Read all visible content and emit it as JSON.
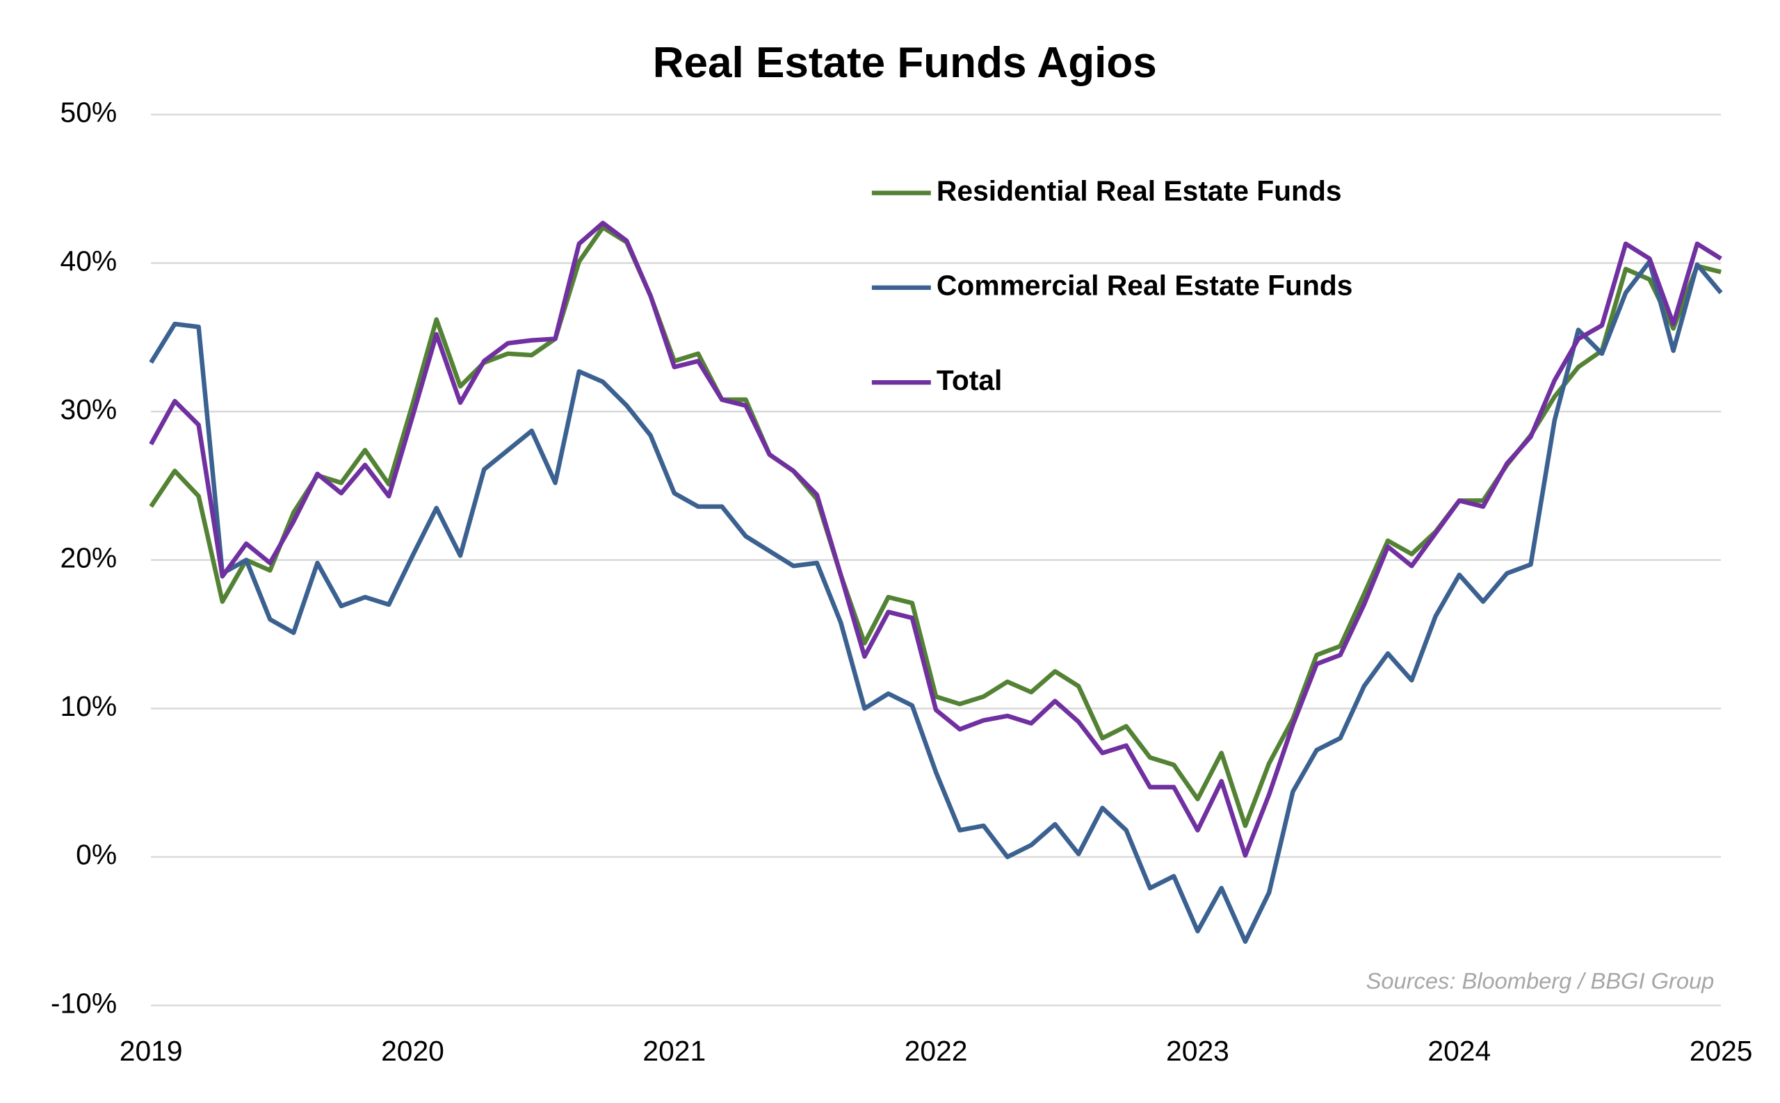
{
  "chart_data": {
    "type": "line",
    "title": "Real Estate Funds Agios",
    "x": [
      2019,
      2019.091,
      2019.182,
      2019.273,
      2019.364,
      2019.455,
      2019.545,
      2019.636,
      2019.727,
      2019.818,
      2019.909,
      2020,
      2020.091,
      2020.182,
      2020.273,
      2020.364,
      2020.455,
      2020.545,
      2020.636,
      2020.727,
      2020.818,
      2020.909,
      2021,
      2021.091,
      2021.182,
      2021.273,
      2021.364,
      2021.455,
      2021.545,
      2021.636,
      2021.727,
      2021.818,
      2021.909,
      2022,
      2022.091,
      2022.182,
      2022.273,
      2022.364,
      2022.455,
      2022.545,
      2022.636,
      2022.727,
      2022.818,
      2022.909,
      2023,
      2023.091,
      2023.182,
      2023.273,
      2023.364,
      2023.455,
      2023.545,
      2023.636,
      2023.727,
      2023.818,
      2023.909,
      2024,
      2024.091,
      2024.182,
      2024.273,
      2024.364,
      2024.455,
      2024.545,
      2024.636,
      2024.727,
      2024.818,
      2024.909,
      2025
    ],
    "series": [
      {
        "name": "Residential Real Estate Funds",
        "color": "#548235",
        "values": [
          23.6,
          26.0,
          24.3,
          17.2,
          20.0,
          19.3,
          23.2,
          25.7,
          25.2,
          27.4,
          25.1,
          30.5,
          36.2,
          31.7,
          33.3,
          33.9,
          33.8,
          34.9,
          40.1,
          42.4,
          41.4,
          37.8,
          33.4,
          33.9,
          30.8,
          30.8,
          27.1,
          26.0,
          24.1,
          19.0,
          14.4,
          17.5,
          17.1,
          10.8,
          10.3,
          10.8,
          11.8,
          11.1,
          12.5,
          11.5,
          8.0,
          8.8,
          6.7,
          6.2,
          3.9,
          7.0,
          2.1,
          6.3,
          9.3,
          13.6,
          14.2,
          17.7,
          21.3,
          20.4,
          21.9,
          24.0,
          24.0,
          26.4,
          28.4,
          31.0,
          33.0,
          34.1,
          39.6,
          38.9,
          35.6,
          39.8,
          39.4
        ]
      },
      {
        "name": "Commercial Real Estate Funds",
        "color": "#3b6190",
        "values": [
          33.3,
          35.9,
          35.7,
          19.1,
          20.0,
          16.0,
          15.1,
          19.8,
          16.9,
          17.5,
          17.0,
          20.3,
          23.5,
          20.3,
          26.1,
          27.4,
          28.7,
          25.2,
          32.7,
          32.0,
          30.4,
          28.4,
          24.5,
          23.6,
          23.6,
          21.6,
          20.6,
          19.6,
          19.8,
          15.8,
          10.0,
          11.0,
          10.2,
          5.7,
          1.8,
          2.1,
          0.0,
          0.8,
          2.2,
          0.2,
          3.3,
          1.8,
          -2.1,
          -1.3,
          -5.0,
          -2.1,
          -5.7,
          -2.4,
          4.4,
          7.2,
          8.0,
          11.5,
          13.7,
          11.9,
          16.2,
          19.0,
          17.2,
          19.1,
          19.7,
          29.4,
          35.5,
          33.9,
          38.0,
          40.1,
          34.1,
          39.9,
          38.0
        ]
      },
      {
        "name": "Total",
        "color": "#7030a0",
        "values": [
          27.8,
          30.7,
          29.1,
          18.9,
          21.1,
          19.8,
          22.6,
          25.8,
          24.5,
          26.4,
          24.3,
          29.7,
          35.2,
          30.6,
          33.4,
          34.6,
          34.8,
          34.9,
          41.3,
          42.7,
          41.5,
          37.8,
          33.0,
          33.4,
          30.8,
          30.4,
          27.1,
          26.0,
          24.4,
          19.0,
          13.5,
          16.5,
          16.1,
          9.9,
          8.6,
          9.2,
          9.5,
          9.0,
          10.5,
          9.1,
          7.0,
          7.5,
          4.7,
          4.7,
          1.8,
          5.1,
          0.1,
          4.2,
          8.9,
          13.0,
          13.6,
          17.0,
          20.9,
          19.6,
          21.8,
          24.0,
          23.6,
          26.5,
          28.3,
          32.1,
          34.9,
          35.8,
          41.3,
          40.3,
          35.9,
          41.3,
          40.3
        ]
      }
    ],
    "xlim": [
      2019,
      2025
    ],
    "xticks": [
      2019,
      2020,
      2021,
      2022,
      2023,
      2024,
      2025
    ],
    "ylim": [
      -10,
      50
    ],
    "yticks": [
      {
        "value": -10,
        "label": "-10%"
      },
      {
        "value": 0,
        "label": "0%"
      },
      {
        "value": 10,
        "label": "10%"
      },
      {
        "value": 20,
        "label": "20%"
      },
      {
        "value": 30,
        "label": "30%"
      },
      {
        "value": 40,
        "label": "40%"
      },
      {
        "value": 50,
        "label": "50%"
      }
    ],
    "grid": true,
    "annotation": "Sources: Bloomberg / BBGI Group"
  }
}
